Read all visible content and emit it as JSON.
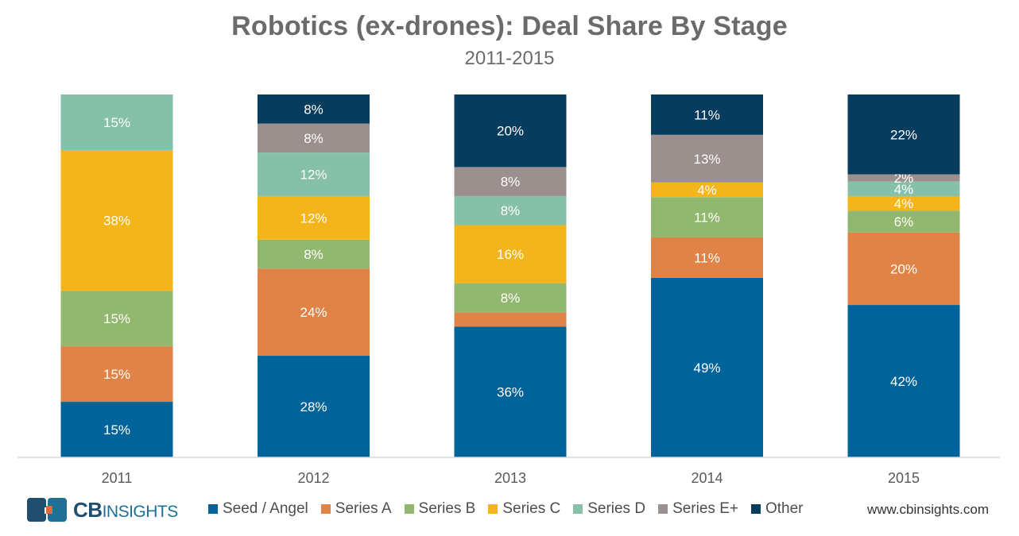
{
  "chart_data": {
    "type": "bar",
    "stacked": true,
    "title": "Robotics (ex-drones): Deal Share By Stage",
    "subtitle": "2011-2015",
    "categories": [
      "2011",
      "2012",
      "2013",
      "2014",
      "2015"
    ],
    "ylim": [
      0,
      100
    ],
    "series": [
      {
        "name": "Seed / Angel",
        "color": "#00639a",
        "values": [
          15,
          28,
          36,
          49,
          42
        ],
        "labels": [
          "15%",
          "28%",
          "36%",
          "49%",
          "42%"
        ]
      },
      {
        "name": "Series A",
        "color": "#df8347",
        "values": [
          15,
          24,
          4,
          11,
          20
        ],
        "labels": [
          "15%",
          "24%",
          "",
          "11%",
          "20%"
        ]
      },
      {
        "name": "Series B",
        "color": "#92b86f",
        "values": [
          15,
          8,
          8,
          11,
          6
        ],
        "labels": [
          "15%",
          "8%",
          "8%",
          "11%",
          "6%"
        ]
      },
      {
        "name": "Series C",
        "color": "#f4b41b",
        "values": [
          38,
          12,
          16,
          4,
          4
        ],
        "labels": [
          "38%",
          "12%",
          "16%",
          "4%",
          "4%"
        ]
      },
      {
        "name": "Series D",
        "color": "#86c0a8",
        "values": [
          15,
          12,
          8,
          0,
          4
        ],
        "labels": [
          "15%",
          "12%",
          "8%",
          "",
          "4%"
        ]
      },
      {
        "name": "Series E+",
        "color": "#9b908e",
        "values": [
          0,
          8,
          8,
          13,
          2
        ],
        "labels": [
          "",
          "8%",
          "8%",
          "13%",
          "2%"
        ]
      },
      {
        "name": "Other",
        "color": "#063d5e",
        "values": [
          0,
          8,
          20,
          11,
          22
        ],
        "labels": [
          "",
          "8%",
          "20%",
          "11%",
          "22%"
        ]
      }
    ]
  },
  "footer": {
    "logo_bold": "CB",
    "logo_rest": "INSIGHTS",
    "website": "www.cbinsights.com"
  }
}
